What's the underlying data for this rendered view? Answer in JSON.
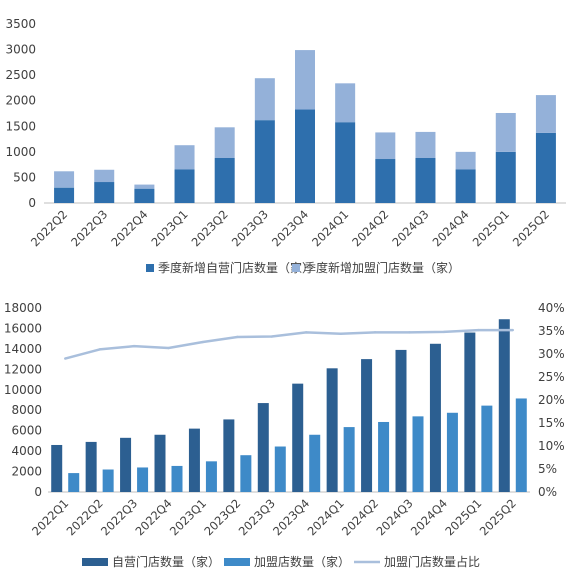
{
  "chart_data": [
    {
      "type": "bar",
      "stacked": true,
      "categories": [
        "2022Q2",
        "2022Q3",
        "2022Q4",
        "2023Q1",
        "2023Q2",
        "2023Q3",
        "2023Q4",
        "2024Q1",
        "2024Q2",
        "2024Q3",
        "2024Q4",
        "2025Q1",
        "2025Q2"
      ],
      "series": [
        {
          "name": "季度新增自营门店数量（家）",
          "color": "#2e6fad",
          "values": [
            300,
            410,
            280,
            660,
            880,
            1620,
            1830,
            1580,
            860,
            880,
            660,
            1000,
            1370
          ]
        },
        {
          "name": "季度新增加盟门店数量（家）",
          "color": "#94b1d9",
          "values": [
            320,
            240,
            80,
            470,
            600,
            820,
            1160,
            760,
            520,
            510,
            340,
            760,
            740
          ]
        }
      ],
      "ylim": [
        0,
        3500
      ],
      "yticks": [
        0,
        500,
        1000,
        1500,
        2000,
        2500,
        3000,
        3500
      ],
      "grid": false,
      "legend": "bottom"
    },
    {
      "type": "bar",
      "categories": [
        "2022Q1",
        "2022Q2",
        "2022Q3",
        "2022Q4",
        "2023Q1",
        "2023Q2",
        "2023Q3",
        "2023Q4",
        "2024Q1",
        "2024Q2",
        "2024Q3",
        "2024Q4",
        "2025Q1",
        "2025Q2"
      ],
      "series": [
        {
          "name": "自营门店数量（家）",
          "color": "#2c5f91",
          "axis": "left",
          "values": [
            4600,
            4900,
            5300,
            5600,
            6200,
            7100,
            8700,
            10600,
            12100,
            13000,
            13900,
            14500,
            15600,
            16900
          ]
        },
        {
          "name": "加盟店数量（家）",
          "color": "#3e8ac8",
          "axis": "left",
          "values": [
            1850,
            2200,
            2400,
            2550,
            3000,
            3600,
            4450,
            5600,
            6350,
            6850,
            7400,
            7750,
            8450,
            9150
          ]
        },
        {
          "name": "加盟门店数量占比",
          "type": "line",
          "color": "#a9bfdc",
          "axis": "right",
          "values": [
            0.29,
            0.31,
            0.317,
            0.313,
            0.326,
            0.337,
            0.338,
            0.347,
            0.344,
            0.347,
            0.347,
            0.348,
            0.352,
            0.352
          ]
        }
      ],
      "ylim": [
        0,
        18000
      ],
      "yticks": [
        0,
        2000,
        4000,
        6000,
        8000,
        10000,
        12000,
        14000,
        16000,
        18000
      ],
      "y2lim": [
        0,
        0.4
      ],
      "y2ticks": [
        "0%",
        "5%",
        "10%",
        "15%",
        "20%",
        "25%",
        "30%",
        "35%",
        "40%"
      ],
      "grid": false,
      "legend": "bottom"
    }
  ]
}
